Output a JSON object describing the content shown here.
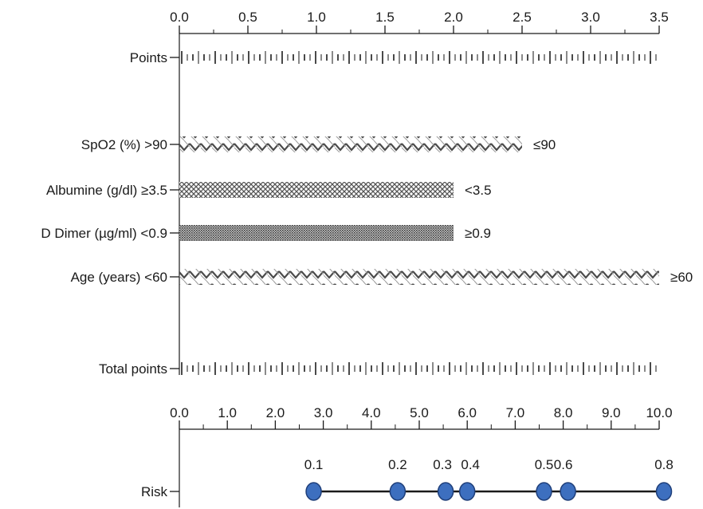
{
  "chart_data": {
    "type": "nomogram",
    "points_axis": {
      "range": [
        0,
        3.5
      ],
      "ticks": [
        "0.0",
        "0.5",
        "1.0",
        "1.5",
        "2.0",
        "2.5",
        "3.0",
        "3.5"
      ]
    },
    "total_points_axis": {
      "range": [
        0,
        10
      ],
      "ticks": [
        "0.0",
        "1.0",
        "2.0",
        "3.0",
        "4.0",
        "5.0",
        "6.0",
        "7.0",
        "8.0",
        "9.0",
        "10.0"
      ]
    },
    "rows": [
      {
        "label": "Points",
        "kind": "scale"
      },
      {
        "label": "SpO2 (%) >90",
        "kind": "variable",
        "points": 2.5,
        "end_label": "≤90",
        "pattern": "zigzag",
        "color": "#555555"
      },
      {
        "label": "Albumine (g/dl) ≥3.5",
        "kind": "variable",
        "points": 2.0,
        "end_label": "<3.5",
        "pattern": "cross",
        "color": "#666666"
      },
      {
        "label": "D Dimer (µg/ml) <0.9",
        "kind": "variable",
        "points": 2.0,
        "end_label": "≥0.9",
        "pattern": "dense",
        "color": "#555555"
      },
      {
        "label": "Age (years) <60",
        "kind": "variable",
        "points": 3.5,
        "end_label": "≥60",
        "pattern": "zigzag",
        "color": "#555555"
      },
      {
        "label": "Total points",
        "kind": "scale"
      }
    ],
    "risk": {
      "label": "Risk",
      "points": [
        {
          "label": "0.1",
          "total_points": 2.8
        },
        {
          "label": "0.2",
          "total_points": 4.55
        },
        {
          "label": "0.3",
          "total_points": 5.55
        },
        {
          "label": "0.4",
          "total_points": 6.0
        },
        {
          "label": "0.5",
          "total_points": 7.6
        },
        {
          "label": "0.6",
          "total_points": 8.1
        },
        {
          "label": "0.8",
          "total_points": 10.1
        }
      ],
      "marker_color": "#3d6fbf",
      "marker_edge": "#1f3f7a"
    }
  }
}
